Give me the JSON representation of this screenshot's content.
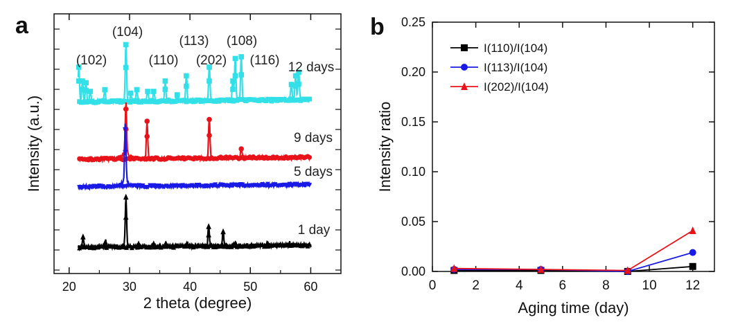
{
  "chart_data": [
    {
      "panel_label": "a",
      "type": "line",
      "xlabel": "2 theta (degree)",
      "ylabel": "Intensity (a.u.)",
      "xlim": [
        17.5,
        65
      ],
      "xticks": [
        20,
        30,
        40,
        50,
        60
      ],
      "y_ticks_labeled": false,
      "series": [
        {
          "name": "12 days",
          "color": "#33e0e8",
          "marker": "square",
          "peaks": [
            [
              21.6,
              1.0
            ],
            [
              22.2,
              0.6
            ],
            [
              22.8,
              0.55
            ],
            [
              23.5,
              0.3
            ],
            [
              25.9,
              0.35
            ],
            [
              29.4,
              1.65
            ],
            [
              30.2,
              0.25
            ],
            [
              31.2,
              0.35
            ],
            [
              33.0,
              0.3
            ],
            [
              34.0,
              0.3
            ],
            [
              35.9,
              0.6
            ],
            [
              37.9,
              0.2
            ],
            [
              39.4,
              0.75
            ],
            [
              43.2,
              1.0
            ],
            [
              47.1,
              0.6
            ],
            [
              47.5,
              1.25
            ],
            [
              48.5,
              1.3
            ],
            [
              56.8,
              0.5
            ],
            [
              57.5,
              0.75
            ],
            [
              58.0,
              0.85
            ]
          ]
        },
        {
          "name": "9 days",
          "color": "#e8131a",
          "marker": "circle",
          "peaks": [
            [
              29.4,
              1.45
            ],
            [
              32.9,
              1.1
            ],
            [
              43.2,
              1.15
            ],
            [
              48.5,
              0.3
            ]
          ]
        },
        {
          "name": "5 days",
          "color": "#1a1ae6",
          "marker": "down-triangle",
          "peaks": [
            [
              29.3,
              1.65
            ]
          ]
        },
        {
          "name": "1 day",
          "color": "#000000",
          "marker": "up-triangle",
          "peaks": [
            [
              22.3,
              0.3
            ],
            [
              26.0,
              0.15
            ],
            [
              29.4,
              1.45
            ],
            [
              31.5,
              0.1
            ],
            [
              34.0,
              0.1
            ],
            [
              36.0,
              0.1
            ],
            [
              39.5,
              0.1
            ],
            [
              43.1,
              0.6
            ],
            [
              45.5,
              0.45
            ],
            [
              47.5,
              0.1
            ],
            [
              52.8,
              0.1
            ],
            [
              56.5,
              0.08
            ]
          ]
        }
      ],
      "annotations": [
        "(102)",
        "(104)",
        "(110)",
        "(113)",
        "(202)",
        "(108)",
        "(116)",
        "12 days",
        "9 days",
        "5 days",
        "1 day"
      ]
    },
    {
      "panel_label": "b",
      "type": "line",
      "xlabel": "Aging time (day)",
      "ylabel": "Intensity ratio",
      "xlim": [
        0,
        13
      ],
      "ylim": [
        0,
        0.25
      ],
      "xticks": [
        0,
        2,
        4,
        6,
        8,
        10,
        12
      ],
      "yticks": [
        "0.00",
        "0.05",
        "0.10",
        "0.15",
        "0.20",
        "0.25"
      ],
      "legend": "top-left",
      "x": [
        1,
        5,
        9,
        12
      ],
      "series": [
        {
          "name": "I(110)/I(104)",
          "color": "#000000",
          "marker": "square",
          "values": [
            0.001,
            0.001,
            0.0,
            0.005
          ]
        },
        {
          "name": "I(113)/I(104)",
          "color": "#1a1ae6",
          "marker": "circle",
          "values": [
            0.002,
            0.002,
            0.0,
            0.019
          ]
        },
        {
          "name": "I(202)/I(104)",
          "color": "#e8131a",
          "marker": "up-triangle",
          "values": [
            0.003,
            0.002,
            0.001,
            0.041
          ]
        }
      ]
    }
  ]
}
